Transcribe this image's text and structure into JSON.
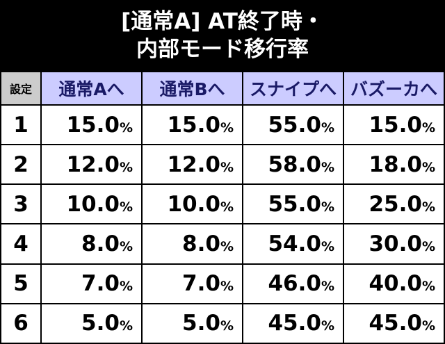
{
  "header": {
    "title_lines": [
      "[通常A] AT終了時・",
      "内部モード移行率"
    ]
  },
  "table": {
    "columns": [
      "設定",
      "通常Aへ",
      "通常Bへ",
      "スナイプへ",
      "バズーカへ"
    ],
    "rows": [
      [
        "1",
        "15.0%",
        "15.0%",
        "55.0%",
        "15.0%"
      ],
      [
        "2",
        "12.0%",
        "12.0%",
        "58.0%",
        "18.0%"
      ],
      [
        "3",
        "10.0%",
        "10.0%",
        "55.0%",
        "25.0%"
      ],
      [
        "4",
        "8.0%",
        "8.0%",
        "54.0%",
        "30.0%"
      ],
      [
        "5",
        "7.0%",
        "7.0%",
        "46.0%",
        "40.0%"
      ],
      [
        "6",
        "5.0%",
        "5.0%",
        "45.0%",
        "45.0%"
      ]
    ]
  }
}
